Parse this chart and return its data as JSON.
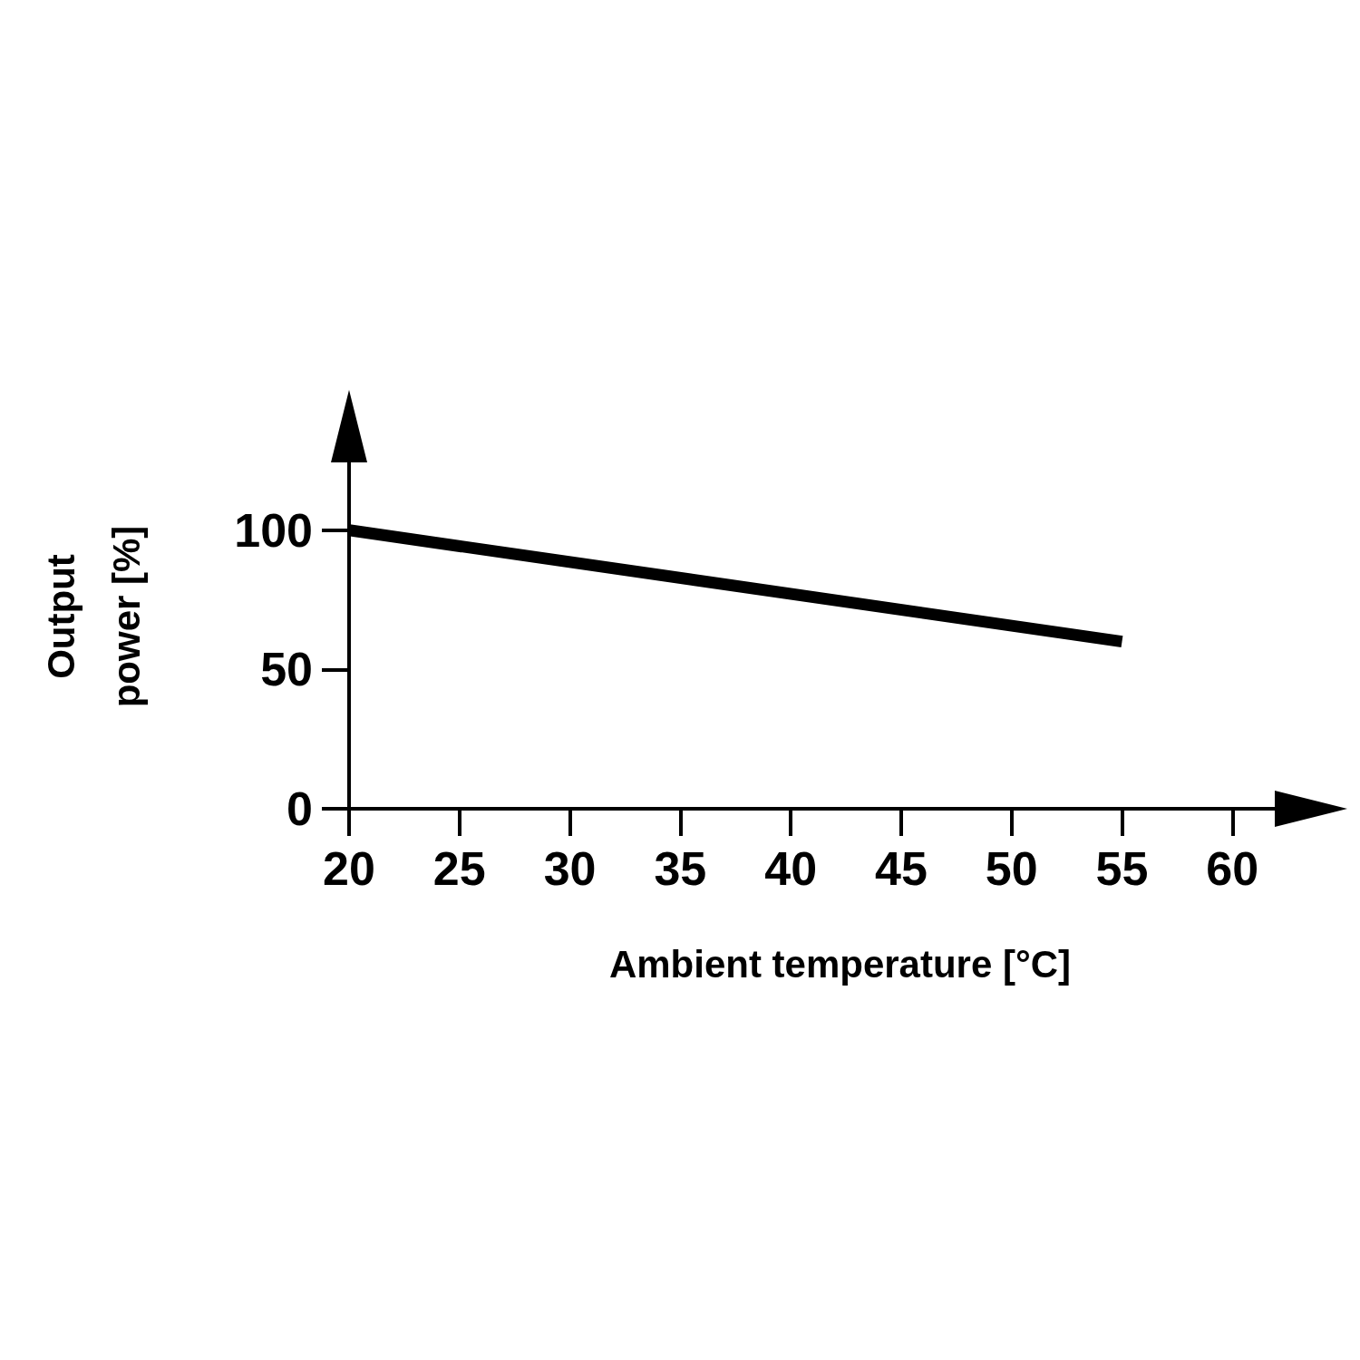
{
  "chart_data": {
    "type": "line",
    "xlabel": "Ambient temperature [°C]",
    "ylabel": "Output power [%]",
    "x": [
      20,
      55
    ],
    "values": [
      100,
      60
    ],
    "color": "#000000",
    "xlim": [
      20,
      62
    ],
    "xticks": [
      20,
      25,
      30,
      35,
      40,
      45,
      50,
      55,
      60
    ],
    "ylim": [
      0,
      125
    ],
    "yticks": [
      0,
      50,
      100
    ],
    "grid": false,
    "marker": "none",
    "line_style": "solid"
  }
}
